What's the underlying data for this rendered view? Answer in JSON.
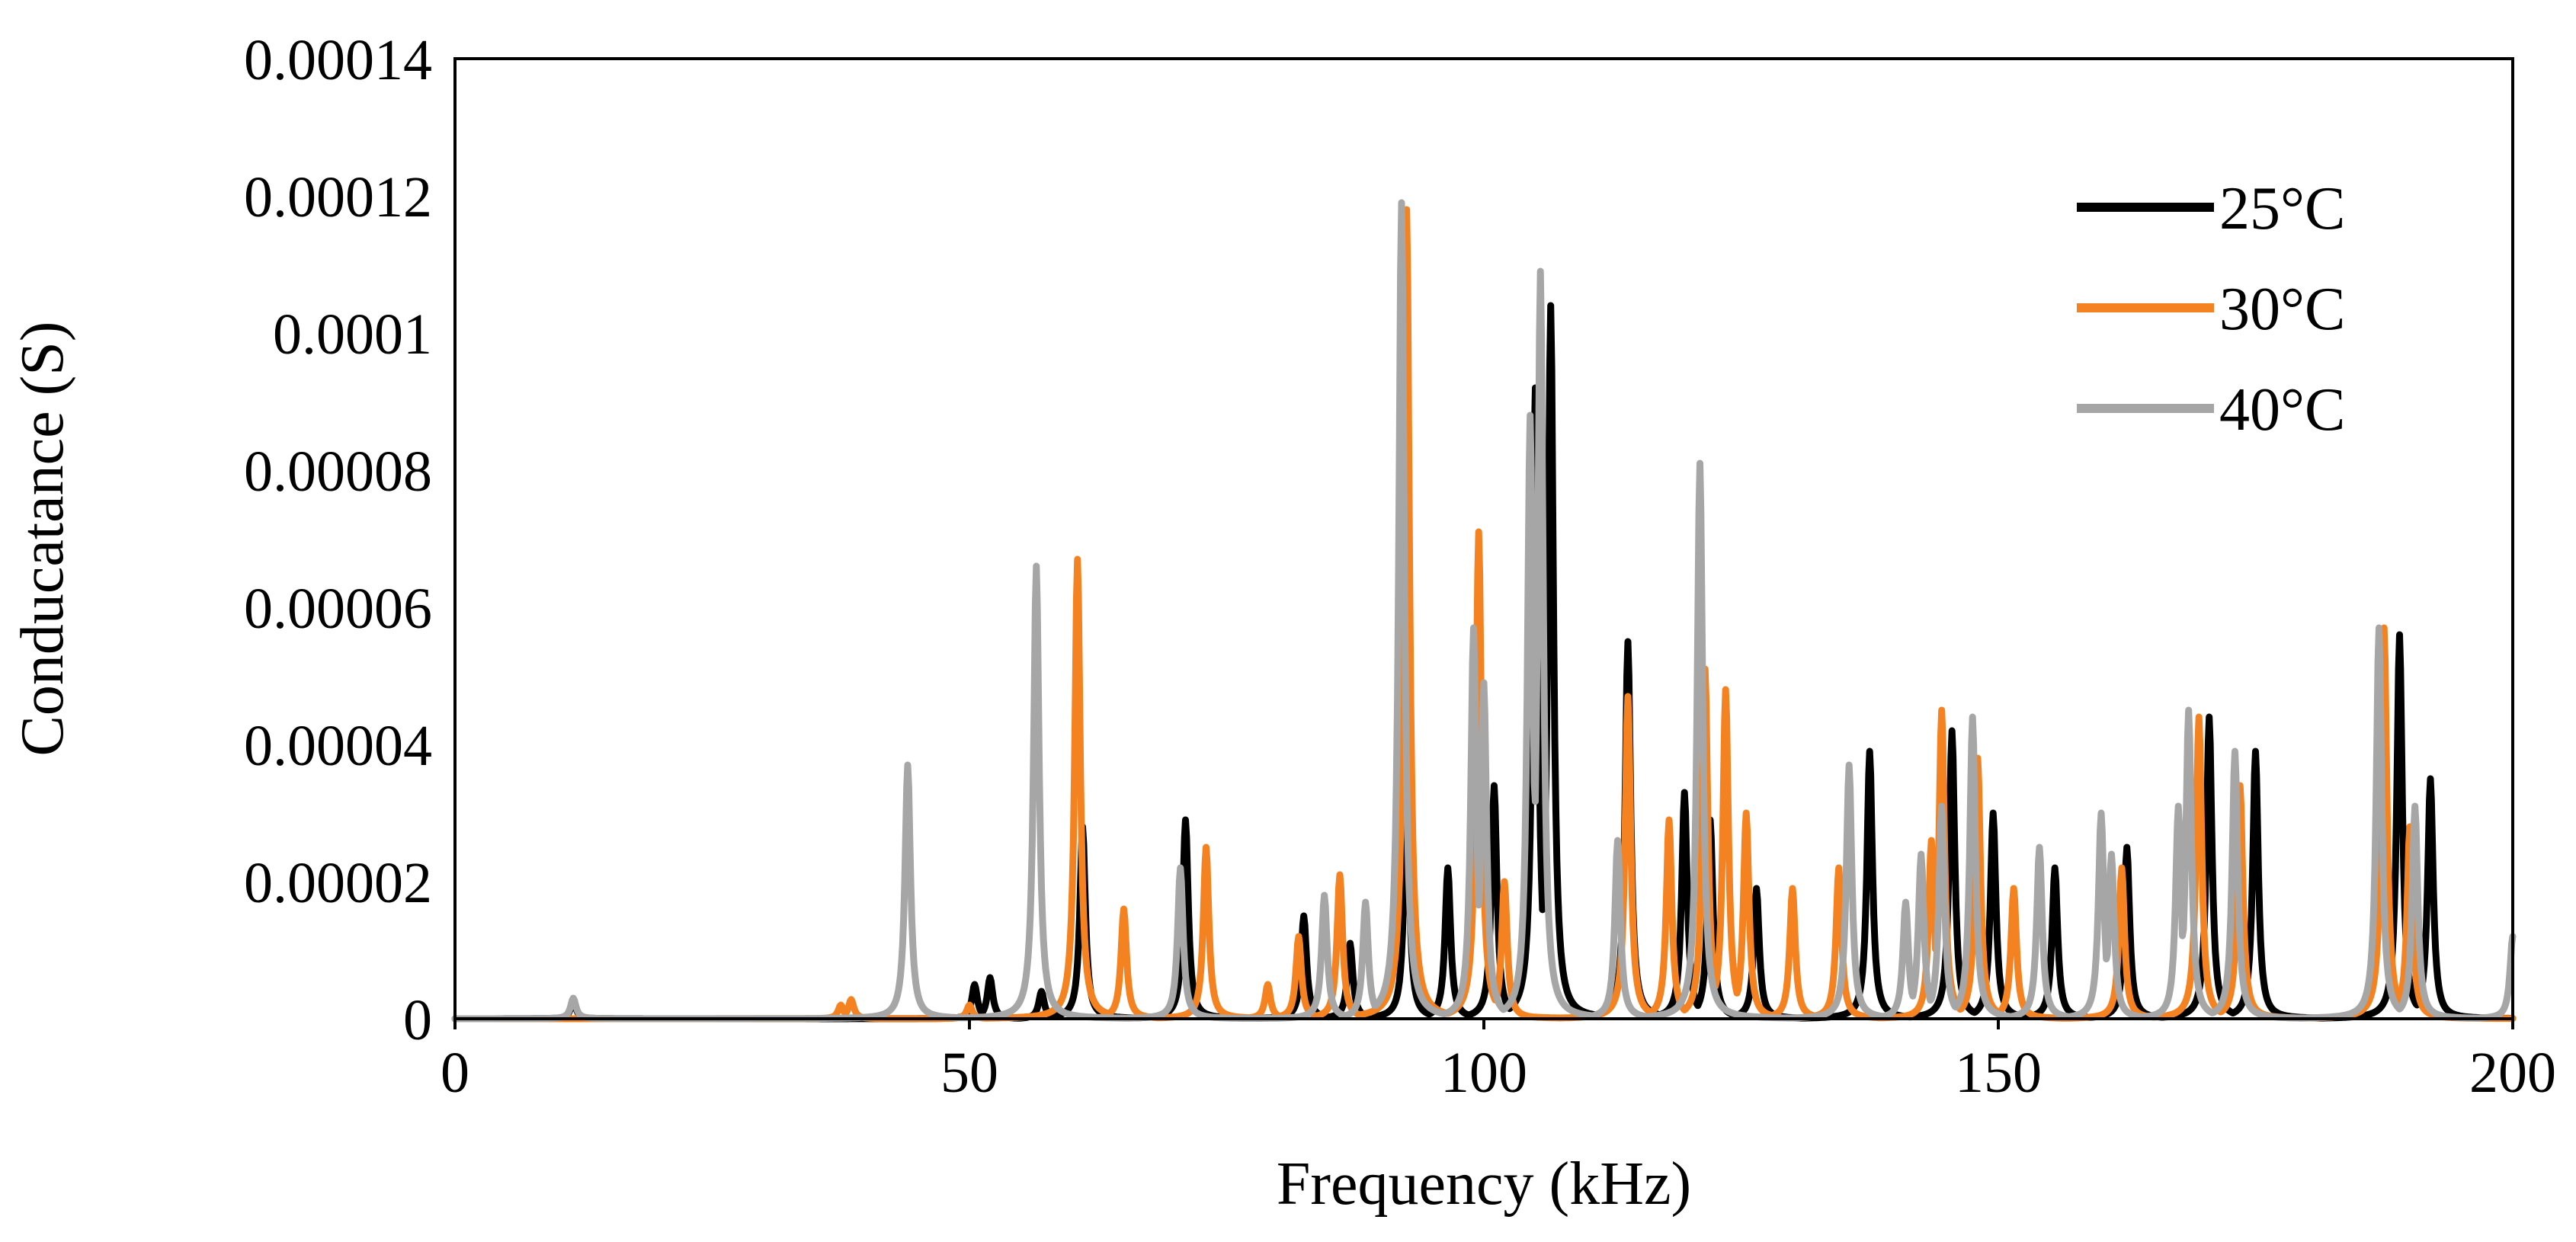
{
  "chart_data": {
    "type": "line",
    "title": "",
    "xlabel": "Frequency (kHz)",
    "ylabel": "Conducatance (S)",
    "xlim": [
      0,
      200
    ],
    "ylim": [
      0,
      0.00014
    ],
    "x_ticks": [
      0,
      50,
      100,
      150,
      200
    ],
    "x_tick_labels": [
      "0",
      "50",
      "100",
      "150",
      "200"
    ],
    "y_ticks": [
      0,
      2e-05,
      4e-05,
      6e-05,
      8e-05,
      0.0001,
      0.00012,
      0.00014
    ],
    "y_tick_labels": [
      "0",
      "0.00002",
      "0.00004",
      "0.00006",
      "0.00008",
      "0.0001",
      "0.00012",
      "0.00014"
    ],
    "grid": false,
    "legend": {
      "position": "top-right"
    },
    "series": [
      {
        "name": "25°C",
        "color": "#000000",
        "peaks": [
          [
            11.5,
            2.5e-06
          ],
          [
            50.5,
            5e-06
          ],
          [
            52,
            6e-06
          ],
          [
            57,
            4e-06
          ],
          [
            61,
            2.8e-05
          ],
          [
            71,
            2.9e-05
          ],
          [
            82.5,
            1.5e-05
          ],
          [
            87,
            1.1e-05
          ],
          [
            92.5,
            3.2e-05
          ],
          [
            96.5,
            2.2e-05
          ],
          [
            101,
            3.4e-05
          ],
          [
            105,
            9.2e-05
          ],
          [
            106.5,
            0.000104
          ],
          [
            114,
            5.5e-05
          ],
          [
            119.5,
            3.3e-05
          ],
          [
            122,
            2.9e-05
          ],
          [
            126.5,
            1.9e-05
          ],
          [
            137.5,
            3.9e-05
          ],
          [
            145.5,
            4.2e-05
          ],
          [
            149.5,
            3e-05
          ],
          [
            155.5,
            2.2e-05
          ],
          [
            162.5,
            2.5e-05
          ],
          [
            170.5,
            4.4e-05
          ],
          [
            175,
            3.9e-05
          ],
          [
            189,
            5.6e-05
          ],
          [
            192,
            3.5e-05
          ]
        ]
      },
      {
        "name": "30°C",
        "color": "#f58220",
        "peaks": [
          [
            37.5,
            2e-06
          ],
          [
            38.5,
            2.8e-06
          ],
          [
            50,
            2e-06
          ],
          [
            60.5,
            6.7e-05
          ],
          [
            65,
            1.6e-05
          ],
          [
            73,
            2.5e-05
          ],
          [
            79,
            5e-06
          ],
          [
            82,
            1.2e-05
          ],
          [
            86,
            2.1e-05
          ],
          [
            92.5,
            0.000118
          ],
          [
            99.5,
            7.1e-05
          ],
          [
            102,
            2e-05
          ],
          [
            114,
            4.7e-05
          ],
          [
            118,
            2.9e-05
          ],
          [
            121.5,
            5.1e-05
          ],
          [
            123.5,
            4.8e-05
          ],
          [
            125.5,
            3e-05
          ],
          [
            130,
            1.9e-05
          ],
          [
            134.5,
            2.2e-05
          ],
          [
            143.5,
            2.6e-05
          ],
          [
            144.5,
            4.5e-05
          ],
          [
            148,
            3.8e-05
          ],
          [
            151.5,
            1.9e-05
          ],
          [
            162,
            2.2e-05
          ],
          [
            169.5,
            4.4e-05
          ],
          [
            173.5,
            3.4e-05
          ],
          [
            187.5,
            5.7e-05
          ],
          [
            190,
            2.8e-05
          ]
        ]
      },
      {
        "name": "40°C",
        "color": "#a6a6a6",
        "peaks": [
          [
            11.5,
            3e-06
          ],
          [
            44,
            3.7e-05
          ],
          [
            56.5,
            6.6e-05
          ],
          [
            70.5,
            2.2e-05
          ],
          [
            84.5,
            1.8e-05
          ],
          [
            88.5,
            1.7e-05
          ],
          [
            92,
            0.000119
          ],
          [
            99,
            5.7e-05
          ],
          [
            100,
            4.9e-05
          ],
          [
            104.5,
            8.8e-05
          ],
          [
            105.5,
            0.000109
          ],
          [
            113,
            2.6e-05
          ],
          [
            121,
            8.1e-05
          ],
          [
            135.5,
            3.7e-05
          ],
          [
            141,
            1.7e-05
          ],
          [
            142.5,
            2.4e-05
          ],
          [
            144.5,
            3.1e-05
          ],
          [
            147.5,
            4.4e-05
          ],
          [
            154,
            2.5e-05
          ],
          [
            160,
            3e-05
          ],
          [
            161,
            2.4e-05
          ],
          [
            167.5,
            3.1e-05
          ],
          [
            168.5,
            4.5e-05
          ],
          [
            173,
            3.9e-05
          ],
          [
            187,
            5.7e-05
          ],
          [
            190.5,
            3.1e-05
          ],
          [
            200,
            1.2e-05
          ]
        ]
      }
    ]
  }
}
